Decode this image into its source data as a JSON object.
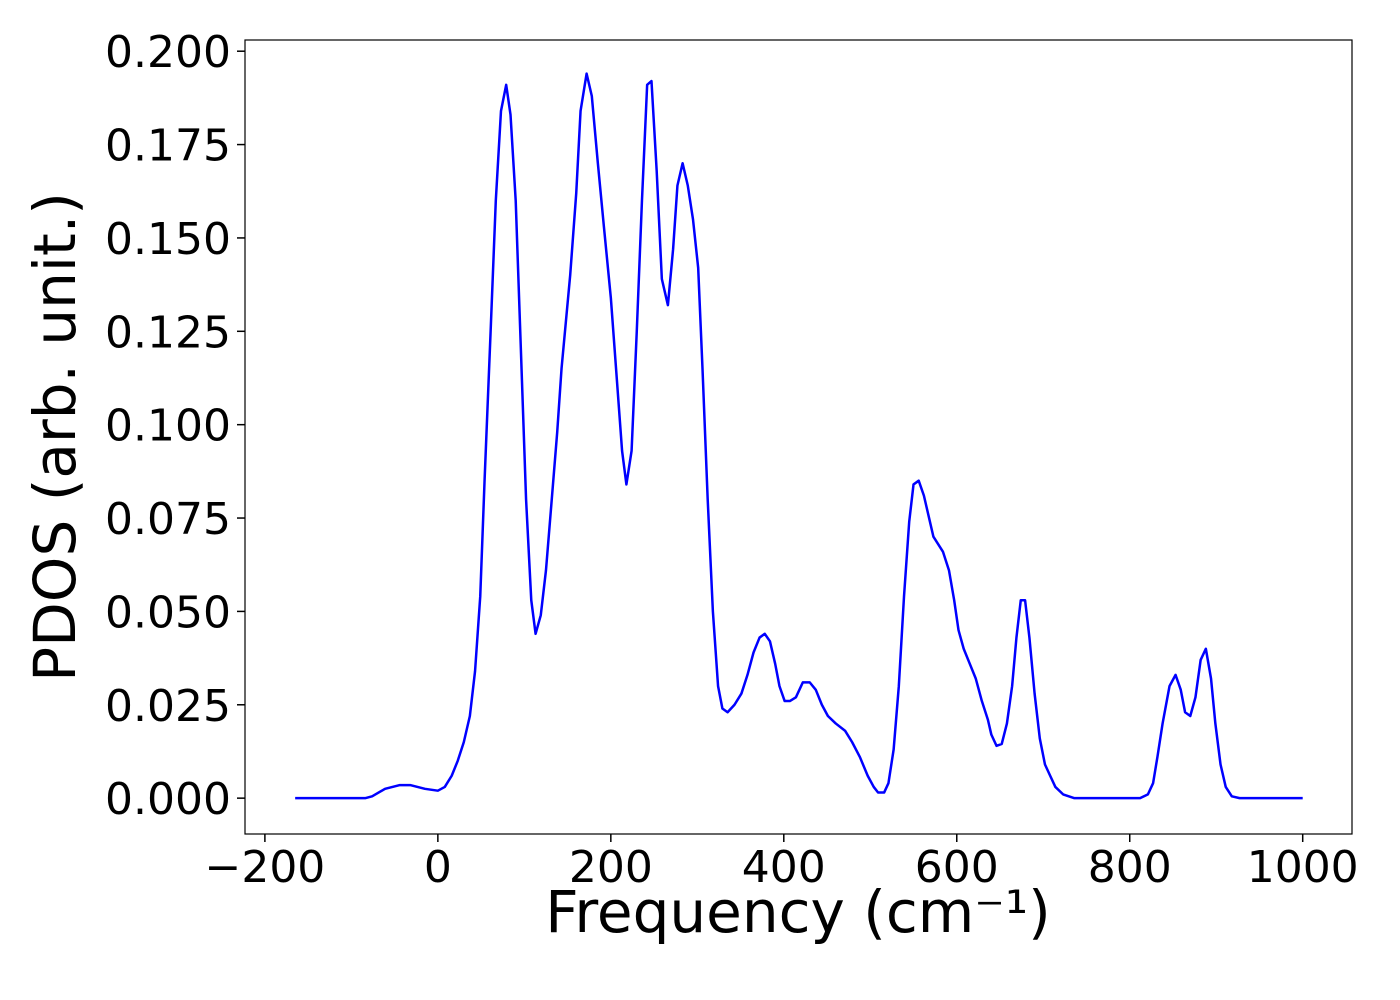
{
  "chart_data": {
    "type": "line",
    "xlabel": "Frequency (cm⁻¹)",
    "ylabel": "PDOS (arb. unit.)",
    "xlim": [
      -223,
      1057
    ],
    "ylim": [
      -0.0096,
      0.203
    ],
    "xticks": [
      {
        "value": -200,
        "label": "−200"
      },
      0,
      200,
      400,
      600,
      800,
      1000
    ],
    "yticks": [
      {
        "value": 0,
        "label": "0.000"
      },
      {
        "value": 0.025,
        "label": "0.025"
      },
      {
        "value": 0.05,
        "label": "0.050"
      },
      {
        "value": 0.075,
        "label": "0.075"
      },
      {
        "value": 0.1,
        "label": "0.100"
      },
      {
        "value": 0.125,
        "label": "0.125"
      },
      {
        "value": 0.15,
        "label": "0.150"
      },
      {
        "value": 0.175,
        "label": "0.175"
      },
      {
        "value": 0.2,
        "label": "0.200"
      }
    ],
    "x": [
      -165,
      -84,
      -76,
      -61,
      -44,
      -32,
      -15,
      0,
      8,
      16,
      23,
      30,
      37,
      43,
      49,
      54,
      61,
      67,
      73,
      79,
      84,
      90,
      96,
      102,
      108,
      113,
      119,
      125,
      131,
      138,
      143,
      153,
      160,
      165,
      172,
      178,
      185,
      192,
      200,
      207,
      213,
      218,
      224,
      230,
      236,
      242,
      247,
      253,
      259,
      266,
      272,
      277,
      283,
      289,
      295,
      301,
      306,
      312,
      318,
      324,
      329,
      335,
      343,
      351,
      358,
      365,
      372,
      378,
      384,
      390,
      395,
      401,
      407,
      414,
      422,
      430,
      437,
      444,
      451,
      460,
      471,
      479,
      488,
      497,
      504,
      509,
      516,
      521,
      527,
      533,
      539,
      545,
      550,
      556,
      562,
      568,
      573,
      584,
      591,
      597,
      602,
      608,
      615,
      622,
      629,
      636,
      640,
      646,
      652,
      658,
      664,
      669,
      674,
      679,
      684,
      690,
      696,
      702,
      708,
      714,
      723,
      736,
      812,
      821,
      827,
      832,
      838,
      846,
      853,
      859,
      864,
      870,
      876,
      882,
      888,
      894,
      899,
      905,
      911,
      918,
      927,
      1000
    ],
    "series": [
      {
        "color": "#0000ff",
        "values": [
          0,
          0,
          0.0005,
          0.0025,
          0.0035,
          0.0035,
          0.0025,
          0.002,
          0.003,
          0.006,
          0.01,
          0.015,
          0.022,
          0.034,
          0.054,
          0.085,
          0.125,
          0.16,
          0.184,
          0.191,
          0.183,
          0.16,
          0.12,
          0.08,
          0.053,
          0.044,
          0.049,
          0.061,
          0.078,
          0.098,
          0.115,
          0.14,
          0.162,
          0.184,
          0.194,
          0.188,
          0.17,
          0.153,
          0.134,
          0.112,
          0.093,
          0.084,
          0.093,
          0.125,
          0.16,
          0.191,
          0.192,
          0.168,
          0.139,
          0.132,
          0.147,
          0.164,
          0.17,
          0.164,
          0.155,
          0.142,
          0.115,
          0.08,
          0.05,
          0.03,
          0.024,
          0.023,
          0.025,
          0.028,
          0.033,
          0.039,
          0.043,
          0.044,
          0.042,
          0.036,
          0.03,
          0.026,
          0.026,
          0.027,
          0.031,
          0.031,
          0.029,
          0.025,
          0.022,
          0.02,
          0.018,
          0.015,
          0.011,
          0.006,
          0.003,
          0.0015,
          0.0015,
          0.004,
          0.013,
          0.03,
          0.054,
          0.074,
          0.084,
          0.085,
          0.081,
          0.075,
          0.07,
          0.066,
          0.061,
          0.053,
          0.045,
          0.04,
          0.036,
          0.032,
          0.026,
          0.021,
          0.017,
          0.014,
          0.0145,
          0.02,
          0.03,
          0.043,
          0.053,
          0.053,
          0.043,
          0.028,
          0.016,
          0.009,
          0.006,
          0.003,
          0.001,
          0,
          0,
          0.001,
          0.004,
          0.011,
          0.02,
          0.03,
          0.033,
          0.029,
          0.023,
          0.022,
          0.027,
          0.037,
          0.04,
          0.032,
          0.02,
          0.009,
          0.003,
          0.0005,
          0,
          0
        ]
      }
    ]
  }
}
